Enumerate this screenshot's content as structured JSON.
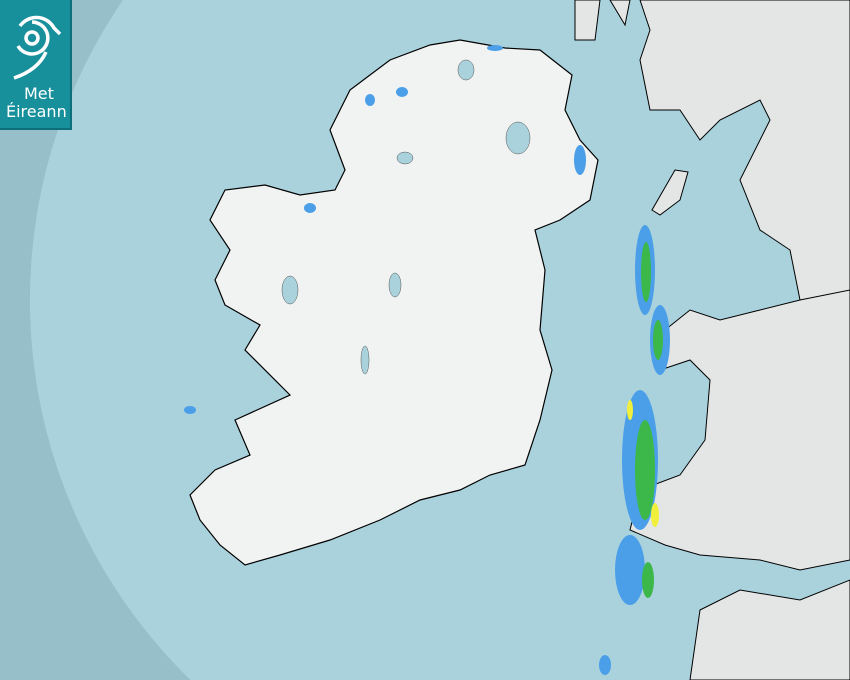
{
  "logo": {
    "line1": "Met",
    "line2": "Éireann"
  },
  "map": {
    "type": "radar-rainfall",
    "colors": {
      "sea_outside": "#97bfca",
      "sea_coverage": "#aad2dd",
      "land": "#f1f2f2",
      "light_rain": "#4a9fe8",
      "moderate_rain": "#3cb84a",
      "heavy_rain": "#f0f03c",
      "brand": "#17909c"
    },
    "icons": [
      "met-eireann-spiral-logo"
    ]
  }
}
